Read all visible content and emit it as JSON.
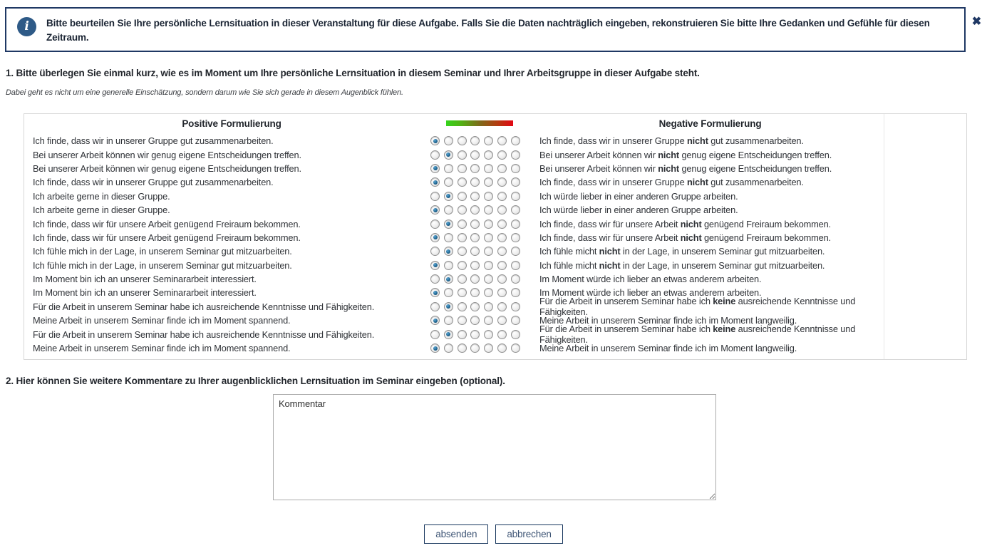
{
  "banner": {
    "text": "Bitte beurteilen Sie Ihre persönliche Lernsituation in dieser Veranstaltung für diese Aufgabe. Falls Sie die Daten nachträglich eingeben, rekonstruieren Sie bitte Ihre Gedanken und Gefühle für diesen Zeitraum.",
    "info_icon_glyph": "i",
    "close_icon_glyph": "✖"
  },
  "question1": {
    "title": "1. Bitte überlegen Sie einmal kurz, wie es im Moment um Ihre persönliche Lernsituation in diesem Seminar und Ihrer Arbeitsgruppe in dieser Aufgabe steht.",
    "note": "Dabei geht es nicht um eine generelle Einschätzung, sondern darum wie Sie sich gerade in diesem Augenblick fühlen."
  },
  "matrix": {
    "positive_header": "Positive Formulierung",
    "negative_header": "Negative Formulierung",
    "scale_points": 7,
    "rows": [
      {
        "positive": "Ich finde, dass wir in unserer Gruppe gut zusammenarbeiten.",
        "negative_pre": "Ich finde, dass wir in unserer Gruppe ",
        "negative_bold": "nicht",
        "negative_post": " gut zusammenarbeiten.",
        "selected": 1
      },
      {
        "positive": "Bei unserer Arbeit können wir genug eigene Entscheidungen treffen.",
        "negative_pre": "Bei unserer Arbeit können wir ",
        "negative_bold": "nicht",
        "negative_post": " genug eigene Entscheidungen treffen.",
        "selected": 2
      },
      {
        "positive": "Bei unserer Arbeit können wir genug eigene Entscheidungen treffen.",
        "negative_pre": "Bei unserer Arbeit können wir ",
        "negative_bold": "nicht",
        "negative_post": " genug eigene Entscheidungen treffen.",
        "selected": 1
      },
      {
        "positive": "Ich finde, dass wir in unserer Gruppe gut zusammenarbeiten.",
        "negative_pre": "Ich finde, dass wir in unserer Gruppe ",
        "negative_bold": "nicht",
        "negative_post": " gut zusammenarbeiten.",
        "selected": 1
      },
      {
        "positive": "Ich arbeite gerne in dieser Gruppe.",
        "negative_pre": "Ich würde lieber in einer anderen Gruppe arbeiten.",
        "negative_bold": "",
        "negative_post": "",
        "selected": 2
      },
      {
        "positive": "Ich arbeite gerne in dieser Gruppe.",
        "negative_pre": "Ich würde lieber in einer anderen Gruppe arbeiten.",
        "negative_bold": "",
        "negative_post": "",
        "selected": 1
      },
      {
        "positive": "Ich finde, dass wir für unsere Arbeit genügend Freiraum bekommen.",
        "negative_pre": "Ich finde, dass wir für unsere Arbeit ",
        "negative_bold": "nicht",
        "negative_post": " genügend Freiraum bekommen.",
        "selected": 2
      },
      {
        "positive": "Ich finde, dass wir für unsere Arbeit genügend Freiraum bekommen.",
        "negative_pre": "Ich finde, dass wir für unsere Arbeit ",
        "negative_bold": "nicht",
        "negative_post": " genügend Freiraum bekommen.",
        "selected": 1
      },
      {
        "positive": "Ich fühle mich in der Lage, in unserem Seminar gut mitzuarbeiten.",
        "negative_pre": "Ich fühle micht ",
        "negative_bold": "nicht",
        "negative_post": " in der Lage, in unserem Seminar gut mitzuarbeiten.",
        "selected": 2
      },
      {
        "positive": "Ich fühle mich in der Lage, in unserem Seminar gut mitzuarbeiten.",
        "negative_pre": "Ich fühle micht ",
        "negative_bold": "nicht",
        "negative_post": " in der Lage, in unserem Seminar gut mitzuarbeiten.",
        "selected": 1
      },
      {
        "positive": "Im Moment bin ich an unserer Seminararbeit interessiert.",
        "negative_pre": "Im Moment würde ich lieber an etwas anderem arbeiten.",
        "negative_bold": "",
        "negative_post": "",
        "selected": 2
      },
      {
        "positive": "Im Moment bin ich an unserer Seminararbeit interessiert.",
        "negative_pre": "Im Moment würde ich lieber an etwas anderem arbeiten.",
        "negative_bold": "",
        "negative_post": "",
        "selected": 1
      },
      {
        "positive": "Für die Arbeit in unserem Seminar habe ich ausreichende Kenntnisse und Fähigkeiten.",
        "negative_pre": "Für die Arbeit in unserem Seminar habe ich ",
        "negative_bold": "keine",
        "negative_post": " ausreichende Kenntnisse und Fähigkeiten.",
        "selected": 2
      },
      {
        "positive": "Meine Arbeit in unserem Seminar finde ich im Moment spannend.",
        "negative_pre": "Meine Arbeit in unserem Seminar finde ich im Moment langweilig.",
        "negative_bold": "",
        "negative_post": "",
        "selected": 1
      },
      {
        "positive": "Für die Arbeit in unserem Seminar habe ich ausreichende Kenntnisse und Fähigkeiten.",
        "negative_pre": "Für die Arbeit in unserem Seminar habe ich ",
        "negative_bold": "keine",
        "negative_post": " ausreichende Kenntnisse und Fähigkeiten.",
        "selected": 2
      },
      {
        "positive": "Meine Arbeit in unserem Seminar finde ich im Moment spannend.",
        "negative_pre": "Meine Arbeit in unserem Seminar finde ich im Moment langweilig.",
        "negative_bold": "",
        "negative_post": "",
        "selected": 1
      }
    ]
  },
  "question2": {
    "title": "2. Hier können Sie weitere Kommentare zu Ihrer augenblicklichen Lernsituation im Seminar eingeben (optional)."
  },
  "comment": {
    "value": "Kommentar"
  },
  "buttons": {
    "submit_label": "absenden",
    "cancel_label": "abbrechen"
  },
  "colors": {
    "accent_navy": "#1f3864",
    "info_icon_blue": "#2e5a87",
    "radio_dot_blue": "#14567f",
    "button_text": "#3e5575",
    "table_border": "#d8d8d8",
    "gradient_start": "#35d41c",
    "gradient_mid": "#7d6b1a",
    "gradient_end": "#e30613"
  }
}
